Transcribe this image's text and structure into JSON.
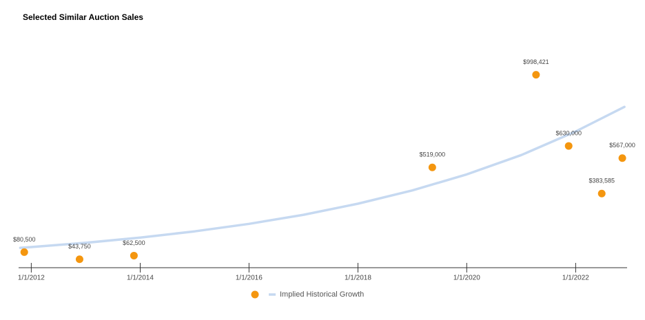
{
  "chart_data": {
    "type": "scatter",
    "title": "Selected Similar Auction Sales",
    "series": [
      {
        "color": "#f4960f",
        "x": [
          "2011-11-15",
          "2012-11-20",
          "2013-11-20",
          "2019-05-15",
          "2021-04-10",
          "2021-11-15",
          "2022-06-25",
          "2022-11-10"
        ],
        "values": [
          80500,
          43750,
          62500,
          519000,
          998421,
          630000,
          383585,
          567000
        ],
        "value_labels": [
          "$80,500",
          "$43,750",
          "$62,500",
          "$519,000",
          "$998,421",
          "$630,000",
          "$383,585",
          "$567,000"
        ]
      },
      {
        "name": "Implied Historical Growth",
        "type": "line",
        "color": "#c6d9f1",
        "x": [
          "2011-10-19",
          "2012-01-01",
          "2013-01-01",
          "2014-01-01",
          "2015-01-01",
          "2016-01-01",
          "2017-01-01",
          "2018-01-01",
          "2019-01-01",
          "2020-01-01",
          "2021-01-01",
          "2022-01-01",
          "2022-11-24"
        ],
        "values": [
          103000,
          107000,
          129000,
          156000,
          188000,
          227000,
          274000,
          331000,
          400000,
          483000,
          583000,
          705000,
          832000
        ]
      }
    ],
    "xlim": [
      "2011-10-08",
      "2022-12-12"
    ],
    "xticks": [
      {
        "value": "2012-01-01",
        "label": "1/1/2012"
      },
      {
        "value": "2014-01-01",
        "label": "1/1/2014"
      },
      {
        "value": "2016-01-01",
        "label": "1/1/2016"
      },
      {
        "value": "2018-01-01",
        "label": "1/1/2018"
      },
      {
        "value": "2020-01-01",
        "label": "1/1/2020"
      },
      {
        "value": "2022-01-01",
        "label": "1/1/2022"
      }
    ],
    "ylim": [
      0,
      1200000
    ],
    "legend": "bottom"
  }
}
